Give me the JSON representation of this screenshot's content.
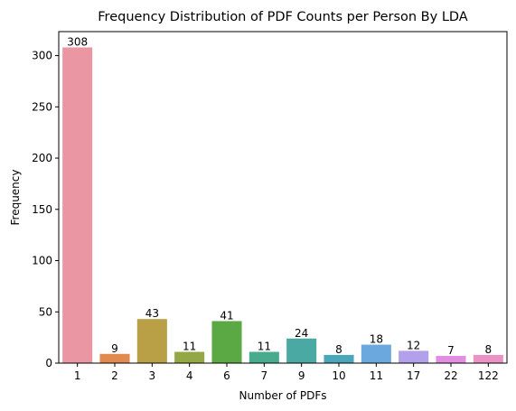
{
  "chart_data": {
    "type": "bar",
    "title": "Frequency Distribution of PDF Counts per Person By LDA",
    "xlabel": "Number of PDFs",
    "ylabel": "Frequency",
    "categories": [
      "1",
      "2",
      "3",
      "4",
      "6",
      "7",
      "9",
      "10",
      "11",
      "17",
      "22",
      "122"
    ],
    "values": [
      308,
      9,
      43,
      11,
      41,
      11,
      24,
      8,
      18,
      12,
      7,
      8
    ],
    "data_labels": [
      "308",
      "9",
      "43",
      "11",
      "41",
      "11",
      "24",
      "8",
      "18",
      "12",
      "7",
      "8"
    ],
    "colors": [
      "#ea96a3",
      "#e18a4f",
      "#b9a046",
      "#93a745",
      "#5ba944",
      "#48ab8e",
      "#4aa9a3",
      "#4aa6bb",
      "#6ba8de",
      "#b2a0ea",
      "#e18de2",
      "#ea92c4"
    ],
    "ylim": [
      0,
      323.4
    ],
    "yticks": [
      0,
      50,
      100,
      150,
      200,
      250,
      300
    ],
    "grid": false,
    "legend": "none"
  }
}
